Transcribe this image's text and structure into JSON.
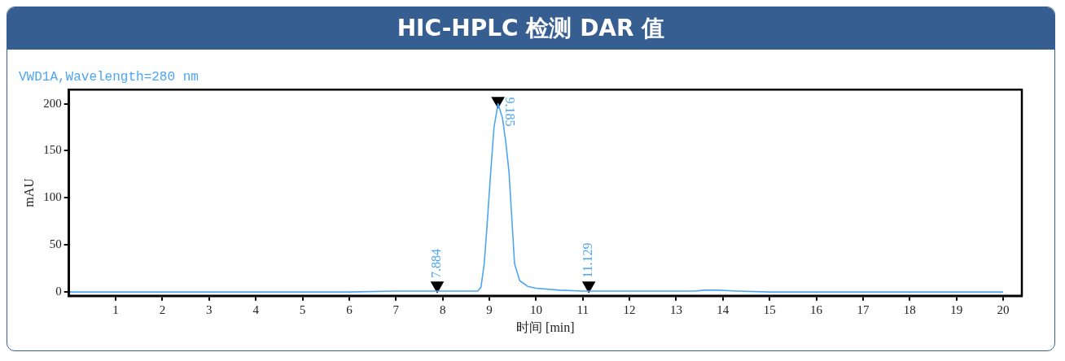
{
  "chart_data": {
    "type": "line",
    "title": "HIC-HPLC 检测 DAR 值",
    "subtitle": "VWD1A,Wavelength=280 nm",
    "xlabel": "时间 [min]",
    "ylabel": "mAU",
    "x": [
      0,
      1,
      2,
      3,
      4,
      5,
      6,
      7,
      7.5,
      7.884,
      8.3,
      8.6,
      8.75,
      8.82,
      8.89,
      8.95,
      9.03,
      9.1,
      9.185,
      9.28,
      9.35,
      9.42,
      9.54,
      9.65,
      9.82,
      10,
      10.5,
      11,
      11.129,
      12,
      13,
      13.4,
      13.6,
      13.9,
      14.3,
      15,
      16,
      17,
      18,
      19,
      20
    ],
    "series": [
      {
        "color": "#4da6f5",
        "values": [
          0,
          0,
          0,
          0,
          0,
          0,
          0,
          1,
          1,
          1,
          1,
          1,
          1,
          5,
          30,
          70,
          128,
          175,
          200,
          185,
          160,
          128,
          30,
          12,
          6,
          4,
          2,
          1,
          1,
          1,
          1,
          1,
          2,
          2,
          1,
          0,
          0,
          0,
          0,
          0,
          0
        ]
      },
      {
        "type": "scatter",
        "color": "#000000",
        "marker": "triangle",
        "x": [
          7.884,
          9.185,
          11.129
        ],
        "values": [
          7,
          203,
          7
        ]
      }
    ],
    "xlim": [
      0,
      20.4
    ],
    "ylim": [
      -4,
      215
    ],
    "xticks": [
      1,
      2,
      3,
      4,
      5,
      6,
      7,
      8,
      9,
      10,
      11,
      12,
      13,
      14,
      15,
      16,
      17,
      18,
      19,
      20
    ],
    "yticks": [
      0,
      50,
      100,
      150,
      200
    ],
    "annotations": [
      {
        "text": "7.884",
        "x": 7.884,
        "y": 1
      },
      {
        "text": "9.185",
        "x": 9.185,
        "y": 200
      },
      {
        "text": "11.129",
        "x": 11.129,
        "y": 1
      }
    ],
    "grid": false,
    "legend": false,
    "marker": "none",
    "line_style": "solid"
  }
}
